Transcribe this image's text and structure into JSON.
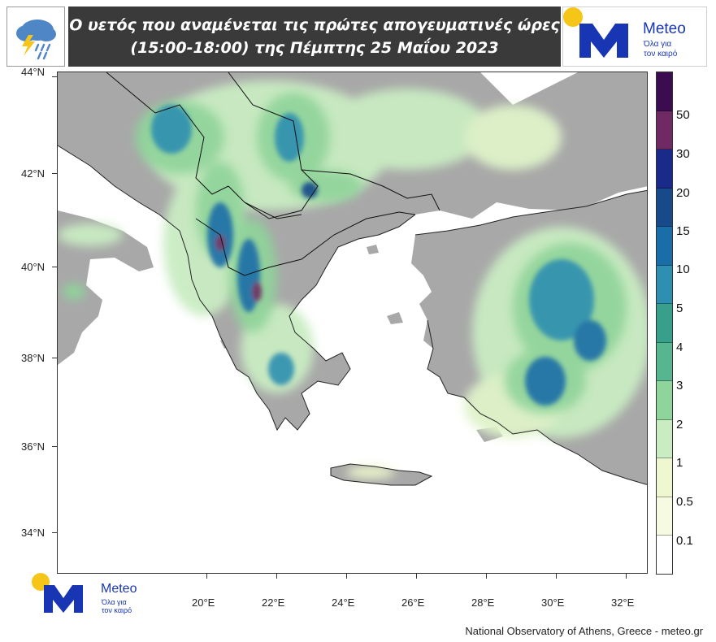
{
  "header": {
    "title_line1": "Ο υετός που αναμένεται τις πρώτες απογευματινές ώρες",
    "title_line2": "(15:00-18:00) της Πέμπτης 25 Μαΐου 2023",
    "weather_icon": "storm-cloud-rain-icon"
  },
  "logo": {
    "name": "Meteo",
    "tagline_line1": "Όλα για",
    "tagline_line2": "τον καιρό",
    "colors": {
      "brand_blue": "#1836b3",
      "sun_yellow": "#f5c518"
    }
  },
  "map": {
    "lat_labels": [
      "44°N",
      "42°N",
      "40°N",
      "38°N",
      "36°N",
      "34°N"
    ],
    "lon_labels": [
      "20°E",
      "22°E",
      "24°E",
      "26°E",
      "28°E",
      "30°E",
      "32°E"
    ],
    "colors": {
      "land": "#a8a8a8",
      "sea": "#ffffff",
      "borders": "#111111"
    }
  },
  "legend": {
    "levels": [
      "50",
      "30",
      "20",
      "15",
      "10",
      "5",
      "4",
      "3",
      "2",
      "1",
      "0.5",
      "0.1"
    ],
    "colors": [
      "#3b0c4f",
      "#6f2a63",
      "#1a2a8a",
      "#174a8a",
      "#1a6ea8",
      "#2f8fb0",
      "#38a08a",
      "#55b690",
      "#8fd49a",
      "#c9ecc2",
      "#eef7cf",
      "#f6fae3",
      "#ffffff"
    ]
  },
  "footer": {
    "credit": "National Observatory of Athens, Greece - meteo.gr"
  }
}
